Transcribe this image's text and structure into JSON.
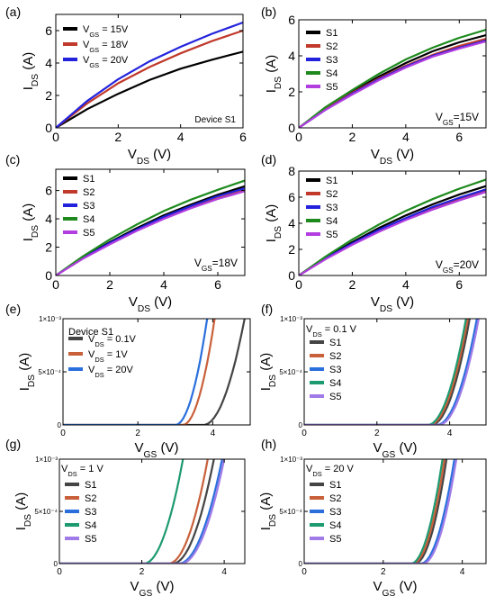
{
  "chart_data": [
    {
      "id": "a",
      "panel_label": "(a)",
      "type": "line",
      "xlabel": "V",
      "xlabel_sub": "DS",
      "xlabel_unit": " (V)",
      "ylabel": "I",
      "ylabel_sub": "DS",
      "ylabel_unit": " (A)",
      "xlim": [
        0,
        6
      ],
      "ylim": [
        0,
        7
      ],
      "xticks": [
        0,
        2,
        4,
        6
      ],
      "yticks": [
        0,
        2,
        4,
        6
      ],
      "annotation": "Device S1",
      "legend_position": "top-left",
      "series": [
        {
          "name": "V",
          "name_sub": "GS",
          "name_rest": " = 15V",
          "color": "#000000",
          "points": [
            [
              0,
              0
            ],
            [
              1,
              1.15
            ],
            [
              2,
              2.1
            ],
            [
              3,
              2.95
            ],
            [
              4,
              3.65
            ],
            [
              5,
              4.2
            ],
            [
              6,
              4.7
            ]
          ]
        },
        {
          "name": "V",
          "name_sub": "GS",
          "name_rest": " = 18V",
          "color": "#c0392b",
          "points": [
            [
              0,
              0
            ],
            [
              1,
              1.5
            ],
            [
              2,
              2.75
            ],
            [
              3,
              3.75
            ],
            [
              4,
              4.6
            ],
            [
              5,
              5.35
            ],
            [
              6,
              6.0
            ]
          ]
        },
        {
          "name": "V",
          "name_sub": "GS",
          "name_rest": " = 20V",
          "color": "#2222dd",
          "points": [
            [
              0,
              0
            ],
            [
              1,
              1.65
            ],
            [
              2,
              3.0
            ],
            [
              3,
              4.1
            ],
            [
              4,
              5.0
            ],
            [
              5,
              5.8
            ],
            [
              6,
              6.5
            ]
          ]
        }
      ]
    },
    {
      "id": "b",
      "panel_label": "(b)",
      "type": "line",
      "xlabel": "V",
      "xlabel_sub": "DS",
      "xlabel_unit": " (V)",
      "ylabel": "I",
      "ylabel_sub": "DS",
      "ylabel_unit": " (A)",
      "xlim": [
        0,
        7
      ],
      "ylim": [
        0,
        6
      ],
      "xticks": [
        0,
        2,
        4,
        6
      ],
      "yticks": [
        0,
        2,
        4,
        6
      ],
      "condition": "V",
      "condition_sub": "GS",
      "condition_rest": "=15V",
      "legend_position": "top-left",
      "series": [
        {
          "name": "S1",
          "color": "#000000",
          "points": [
            [
              0,
              0
            ],
            [
              1,
              1.1
            ],
            [
              2,
              2.0
            ],
            [
              3,
              2.85
            ],
            [
              4,
              3.6
            ],
            [
              5,
              4.25
            ],
            [
              6,
              4.75
            ],
            [
              7,
              5.15
            ]
          ]
        },
        {
          "name": "S2",
          "color": "#c0392b",
          "points": [
            [
              0,
              0
            ],
            [
              1,
              1.05
            ],
            [
              2,
              1.95
            ],
            [
              3,
              2.75
            ],
            [
              4,
              3.45
            ],
            [
              5,
              4.05
            ],
            [
              6,
              4.55
            ],
            [
              7,
              4.95
            ]
          ]
        },
        {
          "name": "S3",
          "color": "#2222dd",
          "points": [
            [
              0,
              0
            ],
            [
              1,
              1.0
            ],
            [
              2,
              1.9
            ],
            [
              3,
              2.7
            ],
            [
              4,
              3.4
            ],
            [
              5,
              4.0
            ],
            [
              6,
              4.45
            ],
            [
              7,
              4.85
            ]
          ]
        },
        {
          "name": "S4",
          "color": "#1e8a1e",
          "points": [
            [
              0,
              0
            ],
            [
              1,
              1.15
            ],
            [
              2,
              2.1
            ],
            [
              3,
              3.0
            ],
            [
              4,
              3.8
            ],
            [
              5,
              4.45
            ],
            [
              6,
              5.0
            ],
            [
              7,
              5.45
            ]
          ]
        },
        {
          "name": "S5",
          "color": "#b23ee0",
          "points": [
            [
              0,
              0
            ],
            [
              1,
              1.0
            ],
            [
              2,
              1.85
            ],
            [
              3,
              2.65
            ],
            [
              4,
              3.35
            ],
            [
              5,
              3.95
            ],
            [
              6,
              4.4
            ],
            [
              7,
              4.8
            ]
          ]
        }
      ]
    },
    {
      "id": "c",
      "panel_label": "(c)",
      "type": "line",
      "xlabel": "V",
      "xlabel_sub": "DS",
      "xlabel_unit": " (V)",
      "ylabel": "I",
      "ylabel_sub": "DS",
      "ylabel_unit": " (A)",
      "xlim": [
        0,
        7
      ],
      "ylim": [
        0,
        7.5
      ],
      "xticks": [
        0,
        2,
        4,
        6
      ],
      "yticks": [
        0,
        2,
        4,
        6
      ],
      "condition": "V",
      "condition_sub": "GS",
      "condition_rest": "=18V",
      "legend_position": "top-left",
      "series": [
        {
          "name": "S1",
          "color": "#000000",
          "points": [
            [
              0,
              0
            ],
            [
              1,
              1.25
            ],
            [
              2,
              2.35
            ],
            [
              3,
              3.35
            ],
            [
              4,
              4.25
            ],
            [
              5,
              5.0
            ],
            [
              6,
              5.7
            ],
            [
              7,
              6.3
            ]
          ]
        },
        {
          "name": "S2",
          "color": "#c0392b",
          "points": [
            [
              0,
              0
            ],
            [
              1,
              1.2
            ],
            [
              2,
              2.25
            ],
            [
              3,
              3.2
            ],
            [
              4,
              4.05
            ],
            [
              5,
              4.8
            ],
            [
              6,
              5.45
            ],
            [
              7,
              6.0
            ]
          ]
        },
        {
          "name": "S3",
          "color": "#2222dd",
          "points": [
            [
              0,
              0
            ],
            [
              1,
              1.22
            ],
            [
              2,
              2.3
            ],
            [
              3,
              3.25
            ],
            [
              4,
              4.15
            ],
            [
              5,
              4.9
            ],
            [
              6,
              5.6
            ],
            [
              7,
              6.15
            ]
          ]
        },
        {
          "name": "S4",
          "color": "#1e8a1e",
          "points": [
            [
              0,
              0
            ],
            [
              1,
              1.35
            ],
            [
              2,
              2.55
            ],
            [
              3,
              3.6
            ],
            [
              4,
              4.55
            ],
            [
              5,
              5.35
            ],
            [
              6,
              6.05
            ],
            [
              7,
              6.7
            ]
          ]
        },
        {
          "name": "S5",
          "color": "#b23ee0",
          "points": [
            [
              0,
              0
            ],
            [
              1,
              1.18
            ],
            [
              2,
              2.2
            ],
            [
              3,
              3.15
            ],
            [
              4,
              4.0
            ],
            [
              5,
              4.75
            ],
            [
              6,
              5.4
            ],
            [
              7,
              5.95
            ]
          ]
        }
      ]
    },
    {
      "id": "d",
      "panel_label": "(d)",
      "type": "line",
      "xlabel": "V",
      "xlabel_sub": "DS",
      "xlabel_unit": " (V)",
      "ylabel": "I",
      "ylabel_sub": "DS",
      "ylabel_unit": " (A)",
      "xlim": [
        0,
        7
      ],
      "ylim": [
        0,
        8
      ],
      "xticks": [
        0,
        2,
        4,
        6
      ],
      "yticks": [
        0,
        2,
        4,
        6,
        8
      ],
      "condition": "V",
      "condition_sub": "GS",
      "condition_rest": "=20V",
      "legend_position": "top-left",
      "series": [
        {
          "name": "S1",
          "color": "#000000",
          "points": [
            [
              0,
              0
            ],
            [
              1,
              1.35
            ],
            [
              2,
              2.55
            ],
            [
              3,
              3.65
            ],
            [
              4,
              4.6
            ],
            [
              5,
              5.45
            ],
            [
              6,
              6.2
            ],
            [
              7,
              6.85
            ]
          ]
        },
        {
          "name": "S2",
          "color": "#c0392b",
          "points": [
            [
              0,
              0
            ],
            [
              1,
              1.28
            ],
            [
              2,
              2.4
            ],
            [
              3,
              3.45
            ],
            [
              4,
              4.35
            ],
            [
              5,
              5.15
            ],
            [
              6,
              5.85
            ],
            [
              7,
              6.5
            ]
          ]
        },
        {
          "name": "S3",
          "color": "#2222dd",
          "points": [
            [
              0,
              0
            ],
            [
              1,
              1.3
            ],
            [
              2,
              2.45
            ],
            [
              3,
              3.5
            ],
            [
              4,
              4.4
            ],
            [
              5,
              5.25
            ],
            [
              6,
              5.95
            ],
            [
              7,
              6.6
            ]
          ]
        },
        {
          "name": "S4",
          "color": "#1e8a1e",
          "points": [
            [
              0,
              0
            ],
            [
              1,
              1.45
            ],
            [
              2,
              2.75
            ],
            [
              3,
              3.9
            ],
            [
              4,
              4.95
            ],
            [
              5,
              5.85
            ],
            [
              6,
              6.65
            ],
            [
              7,
              7.35
            ]
          ]
        },
        {
          "name": "S5",
          "color": "#b23ee0",
          "points": [
            [
              0,
              0
            ],
            [
              1,
              1.25
            ],
            [
              2,
              2.35
            ],
            [
              3,
              3.35
            ],
            [
              4,
              4.25
            ],
            [
              5,
              5.05
            ],
            [
              6,
              5.75
            ],
            [
              7,
              6.4
            ]
          ]
        }
      ]
    },
    {
      "id": "e",
      "panel_label": "(e)",
      "type": "line",
      "xlabel": "V",
      "xlabel_sub": "GS",
      "xlabel_unit": " (V)",
      "ylabel": "I",
      "ylabel_sub": "DS",
      "ylabel_unit": " (A)",
      "xlim": [
        0,
        5
      ],
      "ylim": [
        0,
        0.001
      ],
      "xticks": [
        0,
        2,
        4
      ],
      "yticks": [
        0,
        0.0005,
        0.001
      ],
      "ytick_labels": [
        "0",
        "5×10⁻⁴",
        "1×10⁻³"
      ],
      "annotation": "Device S1",
      "legend_position": "top-left",
      "series": [
        {
          "name": "V",
          "name_sub": "DS",
          "name_rest": " = 0.1V",
          "color": "#444444",
          "vth": 3.75,
          "vend": 4.85
        },
        {
          "name": "V",
          "name_sub": "DS",
          "name_rest": " = 1V",
          "color": "#c8603a",
          "vth": 3.2,
          "vend": 4.05
        },
        {
          "name": "V",
          "name_sub": "DS",
          "name_rest": " = 20V",
          "color": "#2a6fdb",
          "vth": 3.0,
          "vend": 3.85
        }
      ]
    },
    {
      "id": "f",
      "panel_label": "(f)",
      "type": "line",
      "xlabel": "V",
      "xlabel_sub": "GS",
      "xlabel_unit": " (V)",
      "ylabel": "I",
      "ylabel_sub": "DS",
      "ylabel_unit": " (A)",
      "xlim": [
        0,
        5
      ],
      "ylim": [
        0,
        0.001
      ],
      "xticks": [
        0,
        2,
        4
      ],
      "yticks": [
        0,
        0.0005,
        0.001
      ],
      "ytick_labels": [
        "0",
        "5×10⁻⁴",
        "1×10⁻³"
      ],
      "condition": "V",
      "condition_sub": "DS",
      "condition_rest": " = 0.1 V",
      "legend_position": "top-left",
      "series": [
        {
          "name": "S1",
          "color": "#444444",
          "vth": 3.5,
          "vend": 4.55
        },
        {
          "name": "S2",
          "color": "#c8603a",
          "vth": 3.45,
          "vend": 4.5
        },
        {
          "name": "S3",
          "color": "#2a6fdb",
          "vth": 3.65,
          "vend": 4.75
        },
        {
          "name": "S4",
          "color": "#1e9a70",
          "vth": 3.4,
          "vend": 4.45
        },
        {
          "name": "S5",
          "color": "#a07be8",
          "vth": 3.7,
          "vend": 4.8
        }
      ]
    },
    {
      "id": "g",
      "panel_label": "(g)",
      "type": "line",
      "xlabel": "V",
      "xlabel_sub": "GS",
      "xlabel_unit": " (V)",
      "ylabel": "I",
      "ylabel_sub": "DS",
      "ylabel_unit": " (A)",
      "xlim": [
        0,
        4.5
      ],
      "ylim": [
        0,
        0.001
      ],
      "xticks": [
        0,
        2,
        4
      ],
      "yticks": [
        0,
        0.0005,
        0.001
      ],
      "ytick_labels": [
        "0",
        "5×10⁻⁴",
        "1×10⁻³"
      ],
      "condition": "V",
      "condition_sub": "DS",
      "condition_rest": " = 1 V",
      "legend_position": "top-left",
      "series": [
        {
          "name": "S1",
          "color": "#444444",
          "vth": 2.75,
          "vend": 3.75
        },
        {
          "name": "S2",
          "color": "#c8603a",
          "vth": 2.65,
          "vend": 3.6
        },
        {
          "name": "S3",
          "color": "#2a6fdb",
          "vth": 2.9,
          "vend": 3.95
        },
        {
          "name": "S4",
          "color": "#1e9a70",
          "vth": 2.05,
          "vend": 3.0
        },
        {
          "name": "S5",
          "color": "#a07be8",
          "vth": 2.95,
          "vend": 4.0
        }
      ]
    },
    {
      "id": "h",
      "panel_label": "(h)",
      "type": "line",
      "xlabel": "V",
      "xlabel_sub": "GS",
      "xlabel_unit": " (V)",
      "ylabel": "I",
      "ylabel_sub": "DS",
      "ylabel_unit": " (A)",
      "xlim": [
        0,
        4.6
      ],
      "ylim": [
        0,
        0.001
      ],
      "xticks": [
        0,
        2,
        4
      ],
      "yticks": [
        0,
        0.0005,
        0.001
      ],
      "ytick_labels": [
        "0",
        "5×10⁻⁴",
        "1×10⁻³"
      ],
      "condition": "V",
      "condition_sub": "DS",
      "condition_rest": " = 20 V",
      "legend_position": "top-left",
      "series": [
        {
          "name": "S1",
          "color": "#444444",
          "vth": 2.8,
          "vend": 3.6
        },
        {
          "name": "S2",
          "color": "#c8603a",
          "vth": 2.75,
          "vend": 3.55
        },
        {
          "name": "S3",
          "color": "#2a6fdb",
          "vth": 2.95,
          "vend": 3.8
        },
        {
          "name": "S4",
          "color": "#1e9a70",
          "vth": 2.7,
          "vend": 3.5
        },
        {
          "name": "S5",
          "color": "#a07be8",
          "vth": 3.0,
          "vend": 3.85
        }
      ]
    }
  ]
}
